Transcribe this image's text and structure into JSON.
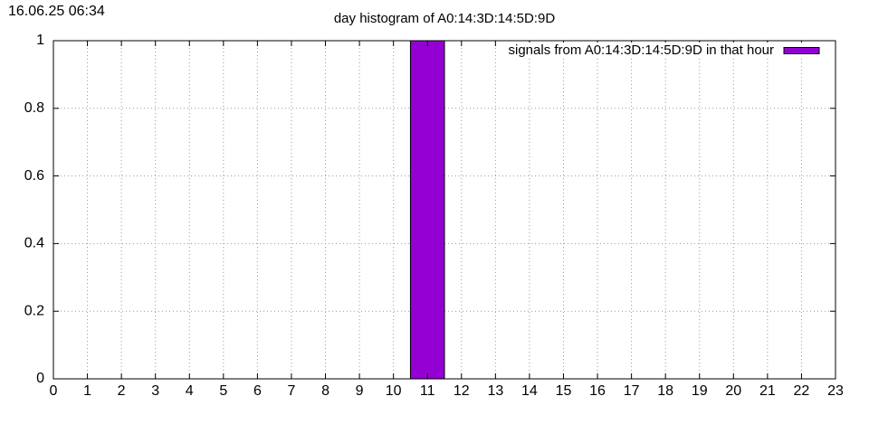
{
  "timestamp": "16.06.25 06:34",
  "chart_data": {
    "type": "bar",
    "title": "day histogram of A0:14:3D:14:5D:9D",
    "x": [
      0,
      1,
      2,
      3,
      4,
      5,
      6,
      7,
      8,
      9,
      10,
      11,
      12,
      13,
      14,
      15,
      16,
      17,
      18,
      19,
      20,
      21,
      22,
      23
    ],
    "series": [
      {
        "name": "signals from A0:14:3D:14:5D:9D in that hour",
        "color": "#9400d3",
        "values": [
          0,
          0,
          0,
          0,
          0,
          0,
          0,
          0,
          0,
          0,
          0,
          1,
          0,
          0,
          0,
          0,
          0,
          0,
          0,
          0,
          0,
          0,
          0,
          0
        ]
      }
    ],
    "xlim": [
      0,
      23
    ],
    "xticks": [
      0,
      1,
      2,
      3,
      4,
      5,
      6,
      7,
      8,
      9,
      10,
      11,
      12,
      13,
      14,
      15,
      16,
      17,
      18,
      19,
      20,
      21,
      22,
      23
    ],
    "ylim": [
      0,
      1
    ],
    "yticks": [
      0,
      0.2,
      0.4,
      0.6,
      0.8,
      1
    ],
    "grid": true,
    "legend": "top-right"
  }
}
